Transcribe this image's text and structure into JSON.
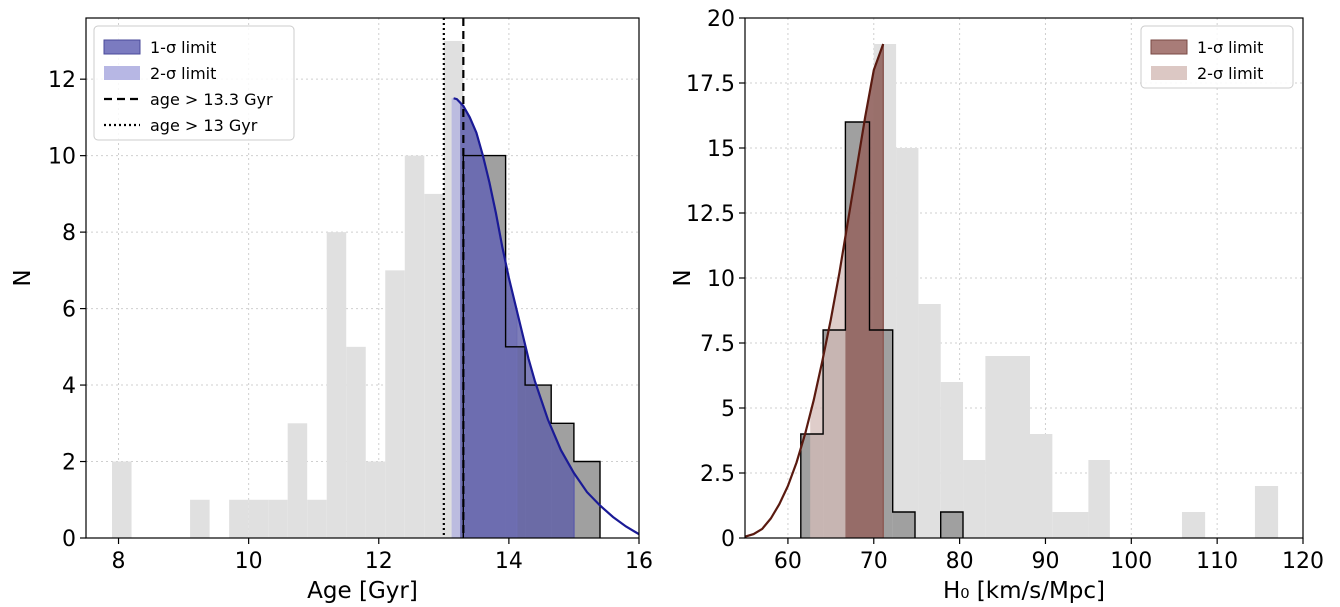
{
  "chart_data": [
    {
      "type": "bar",
      "xlabel": "Age [Gyr]",
      "ylabel": "N",
      "xlim": [
        7.5,
        16
      ],
      "ylim": [
        0,
        13.6
      ],
      "xticks": [
        8,
        10,
        12,
        14,
        16
      ],
      "yticks": [
        0,
        2,
        4,
        6,
        8,
        10,
        12
      ],
      "grid": true,
      "legend_position": "top-left",
      "legend": [
        {
          "label": "1-σ limit",
          "kind": "patch",
          "color": "#7b7bc0"
        },
        {
          "label": "2-σ limit",
          "kind": "patch",
          "color": "#b7b7e4"
        },
        {
          "label": "age > 13.3 Gyr",
          "kind": "dashed-line",
          "color": "#000000"
        },
        {
          "label": "age > 13 Gyr",
          "kind": "dotted-line",
          "color": "#000000"
        }
      ],
      "background_histogram": {
        "color": "#e0e0e0",
        "bins": [
          [
            7.9,
            8.2,
            2
          ],
          [
            9.1,
            9.4,
            1
          ],
          [
            9.7,
            10.0,
            1
          ],
          [
            10.0,
            10.3,
            1
          ],
          [
            10.3,
            10.6,
            1
          ],
          [
            10.6,
            10.9,
            3
          ],
          [
            10.9,
            11.2,
            1
          ],
          [
            11.2,
            11.5,
            8
          ],
          [
            11.5,
            11.8,
            5
          ],
          [
            11.8,
            12.1,
            2
          ],
          [
            12.1,
            12.4,
            7
          ],
          [
            12.4,
            12.7,
            10
          ],
          [
            12.7,
            13.0,
            9
          ],
          [
            13.0,
            13.3,
            13
          ]
        ]
      },
      "selected_histogram": {
        "color": "#a0a0a0",
        "edgecolor": "#000000",
        "bins": [
          [
            13.3,
            13.95,
            10
          ],
          [
            13.95,
            14.25,
            5
          ],
          [
            14.25,
            14.65,
            4
          ],
          [
            14.65,
            15.0,
            3
          ],
          [
            15.0,
            15.4,
            2
          ]
        ]
      },
      "fit_curve": {
        "color": "#1a1a96",
        "x": [
          13.15,
          13.2,
          13.3,
          13.4,
          13.5,
          13.6,
          13.7,
          13.8,
          13.9,
          14.0,
          14.1,
          14.2,
          14.3,
          14.4,
          14.5,
          14.6,
          14.8,
          15.0,
          15.2,
          15.4,
          15.6,
          15.8,
          16.0
        ],
        "y": [
          11.5,
          11.48,
          11.3,
          11.0,
          10.6,
          10.0,
          9.3,
          8.5,
          7.6,
          6.8,
          6.1,
          5.4,
          4.7,
          4.1,
          3.6,
          3.1,
          2.3,
          1.7,
          1.2,
          0.85,
          0.55,
          0.3,
          0.1
        ]
      },
      "sigma_bands": [
        {
          "name": "2-σ limit",
          "range": [
            13.12,
            14.12
          ],
          "color": "#b0b0e0"
        },
        {
          "name": "1-σ limit",
          "range": [
            13.25,
            15.0
          ],
          "color": "#5e5ea8"
        }
      ],
      "vlines": [
        {
          "x": 13.3,
          "style": "dashed",
          "label": "age > 13.3 Gyr"
        },
        {
          "x": 13.0,
          "style": "dotted",
          "label": "age > 13 Gyr"
        }
      ]
    },
    {
      "type": "bar",
      "xlabel": "H₀ [km/s/Mpc]",
      "ylabel": "N",
      "xlim": [
        55,
        120
      ],
      "ylim": [
        0,
        20
      ],
      "xticks": [
        60,
        70,
        80,
        90,
        100,
        110,
        120
      ],
      "yticks": [
        0.0,
        2.5,
        5.0,
        7.5,
        10.0,
        12.5,
        15.0,
        17.5,
        20.0
      ],
      "grid": true,
      "legend_position": "top-right",
      "legend": [
        {
          "label": "1-σ limit",
          "kind": "patch",
          "color": "#a87c78"
        },
        {
          "label": "2-σ limit",
          "kind": "patch",
          "color": "#dcc8c4"
        }
      ],
      "background_histogram": {
        "color": "#e0e0e0",
        "bins": [
          [
            70.0,
            72.6,
            19
          ],
          [
            72.6,
            75.2,
            15
          ],
          [
            75.2,
            77.8,
            9
          ],
          [
            77.8,
            80.4,
            6
          ],
          [
            80.4,
            83.0,
            3
          ],
          [
            83.0,
            88.2,
            7
          ],
          [
            88.2,
            90.8,
            4
          ],
          [
            90.8,
            95.0,
            1
          ],
          [
            95.0,
            97.5,
            3
          ],
          [
            105.9,
            108.6,
            1
          ],
          [
            114.4,
            117.1,
            2
          ]
        ]
      },
      "selected_histogram": {
        "color": "#a0a0a0",
        "edgecolor": "#000000",
        "bins": [
          [
            61.5,
            64.1,
            4
          ],
          [
            64.1,
            66.7,
            8
          ],
          [
            66.7,
            69.5,
            16
          ],
          [
            69.5,
            72.2,
            8
          ],
          [
            72.2,
            74.8,
            1
          ],
          [
            77.8,
            80.4,
            1
          ]
        ]
      },
      "fit_curve": {
        "color": "#5a1a10",
        "x": [
          55,
          56,
          57,
          58,
          59,
          60,
          61,
          62,
          63,
          64,
          65,
          66,
          67,
          68,
          69,
          70,
          71.1
        ],
        "y": [
          0.05,
          0.15,
          0.35,
          0.75,
          1.3,
          2.0,
          2.9,
          4.0,
          5.3,
          6.8,
          8.4,
          10.2,
          12.2,
          14.2,
          16.2,
          18.0,
          19.0
        ]
      },
      "sigma_bands": [
        {
          "name": "2-σ limit",
          "range": [
            62.6,
            71.1
          ],
          "color": "#d4bcb8"
        },
        {
          "name": "1-σ limit",
          "range": [
            66.7,
            71.1
          ],
          "color": "#8a5a55"
        }
      ],
      "vlines": []
    }
  ]
}
